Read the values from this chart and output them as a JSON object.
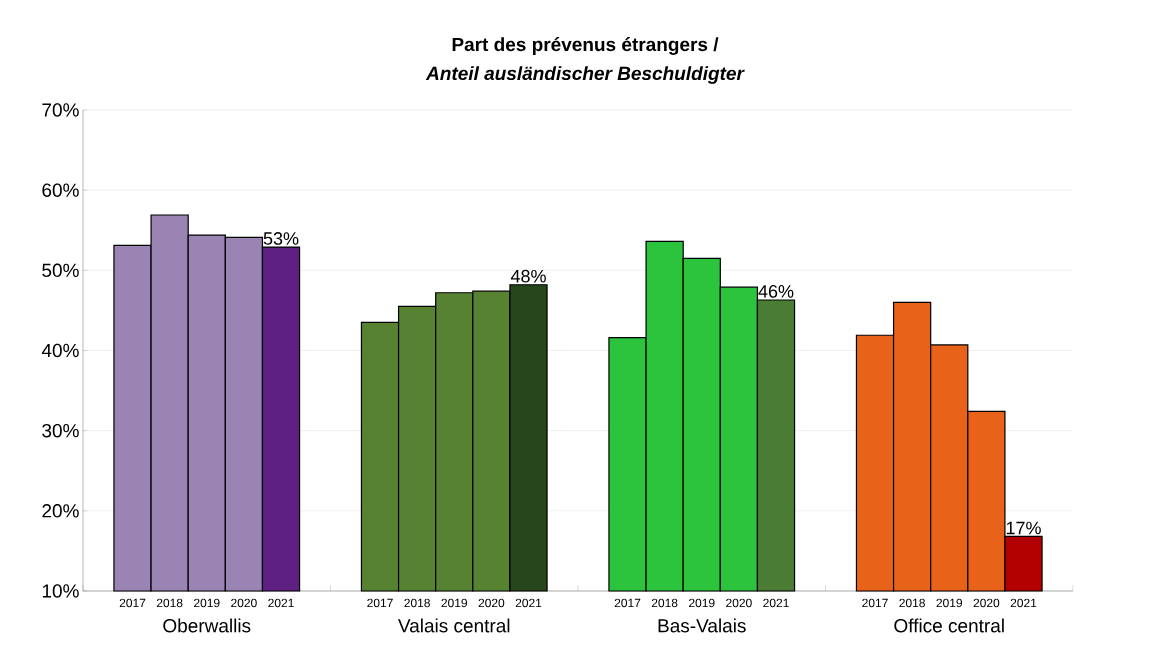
{
  "chart_data": {
    "type": "bar",
    "title": "Part des prévenus étrangers /",
    "subtitle": "Anteil ausländischer Beschuldigter",
    "categories": [
      "Oberwallis",
      "Valais central",
      "Bas-Valais",
      "Office central"
    ],
    "series": [
      {
        "name": "2017",
        "colors": [
          "#9a84b4",
          "#578232",
          "#2cc43d",
          "#e8621a"
        ],
        "values": [
          53.1,
          43.5,
          41.6,
          41.9
        ]
      },
      {
        "name": "2018",
        "colors": [
          "#9a84b4",
          "#578232",
          "#2cc43d",
          "#e8621a"
        ],
        "values": [
          56.9,
          45.5,
          53.6,
          46.0
        ]
      },
      {
        "name": "2019",
        "colors": [
          "#9a84b4",
          "#578232",
          "#2cc43d",
          "#e8621a"
        ],
        "values": [
          54.4,
          47.2,
          51.5,
          40.7
        ]
      },
      {
        "name": "2020",
        "colors": [
          "#9a84b4",
          "#578232",
          "#2cc43d",
          "#e8621a"
        ],
        "values": [
          54.1,
          47.4,
          47.9,
          32.4
        ]
      },
      {
        "name": "2021",
        "colors": [
          "#5f2083",
          "#26461c",
          "#4a7c34",
          "#b30000"
        ],
        "values": [
          52.9,
          48.2,
          46.3,
          16.8
        ],
        "value_labels": [
          "53%",
          "48%",
          "46%",
          "17%"
        ]
      }
    ],
    "ylim": [
      10,
      70
    ],
    "yticks": [
      {
        "value": 10,
        "label": "10%"
      },
      {
        "value": 20,
        "label": "20%"
      },
      {
        "value": 30,
        "label": "30%"
      },
      {
        "value": 40,
        "label": "40%"
      },
      {
        "value": 50,
        "label": "50%"
      },
      {
        "value": 60,
        "label": "60%"
      },
      {
        "value": 70,
        "label": "70%"
      }
    ],
    "grid": "y"
  }
}
